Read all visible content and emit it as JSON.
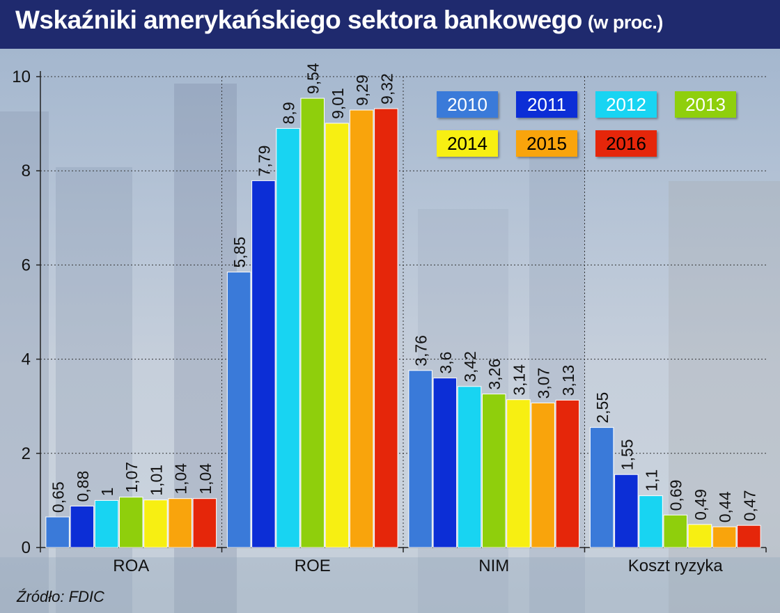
{
  "header": {
    "title": "Wskaźniki amerykańskiego sektora bankowego",
    "subtitle": "(w proc.)"
  },
  "footer": {
    "source": "Źródło: FDIC"
  },
  "colors": {
    "title_bg": "#1f2a6e",
    "series": [
      "#3a7ad9",
      "#0c2ed6",
      "#18d4f2",
      "#8fcf0c",
      "#f7ef12",
      "#f9a40c",
      "#e5260a"
    ],
    "legend_text": [
      "#ffffff",
      "#ffffff",
      "#ffffff",
      "#ffffff",
      "#000000",
      "#000000",
      "#000000"
    ]
  },
  "chart_data": {
    "type": "bar",
    "title": "Wskaźniki amerykańskiego sektora bankowego",
    "subtitle": "(w proc.)",
    "categories": [
      "ROA",
      "ROE",
      "NIM",
      "Koszt ryzyka"
    ],
    "series": [
      {
        "name": "2010",
        "values": [
          0.65,
          5.85,
          3.76,
          2.55
        ],
        "labels": [
          "0,65",
          "5,85",
          "3,76",
          "2,55"
        ]
      },
      {
        "name": "2011",
        "values": [
          0.88,
          7.79,
          3.6,
          1.55
        ],
        "labels": [
          "0,88",
          "7,79",
          "3,6",
          "1,55"
        ]
      },
      {
        "name": "2012",
        "values": [
          1,
          8.9,
          3.42,
          1.1
        ],
        "labels": [
          "1",
          "8,9",
          "3,42",
          "1,1"
        ]
      },
      {
        "name": "2013",
        "values": [
          1.07,
          9.54,
          3.26,
          0.69
        ],
        "labels": [
          "1,07",
          "9,54",
          "3,26",
          "0,69"
        ]
      },
      {
        "name": "2014",
        "values": [
          1.01,
          9.01,
          3.14,
          0.49
        ],
        "labels": [
          "1,01",
          "9,01",
          "3,14",
          "0,49"
        ]
      },
      {
        "name": "2015",
        "values": [
          1.04,
          9.29,
          3.07,
          0.44
        ],
        "labels": [
          "1,04",
          "9,29",
          "3,07",
          "0,44"
        ]
      },
      {
        "name": "2016",
        "values": [
          1.04,
          9.32,
          3.13,
          0.47
        ],
        "labels": [
          "1,04",
          "9,32",
          "3,13",
          "0,47"
        ]
      }
    ],
    "yticks": [
      0,
      2,
      4,
      6,
      8,
      10
    ],
    "ylim": [
      0,
      10
    ],
    "grid": true,
    "legend_position": "top-right"
  }
}
